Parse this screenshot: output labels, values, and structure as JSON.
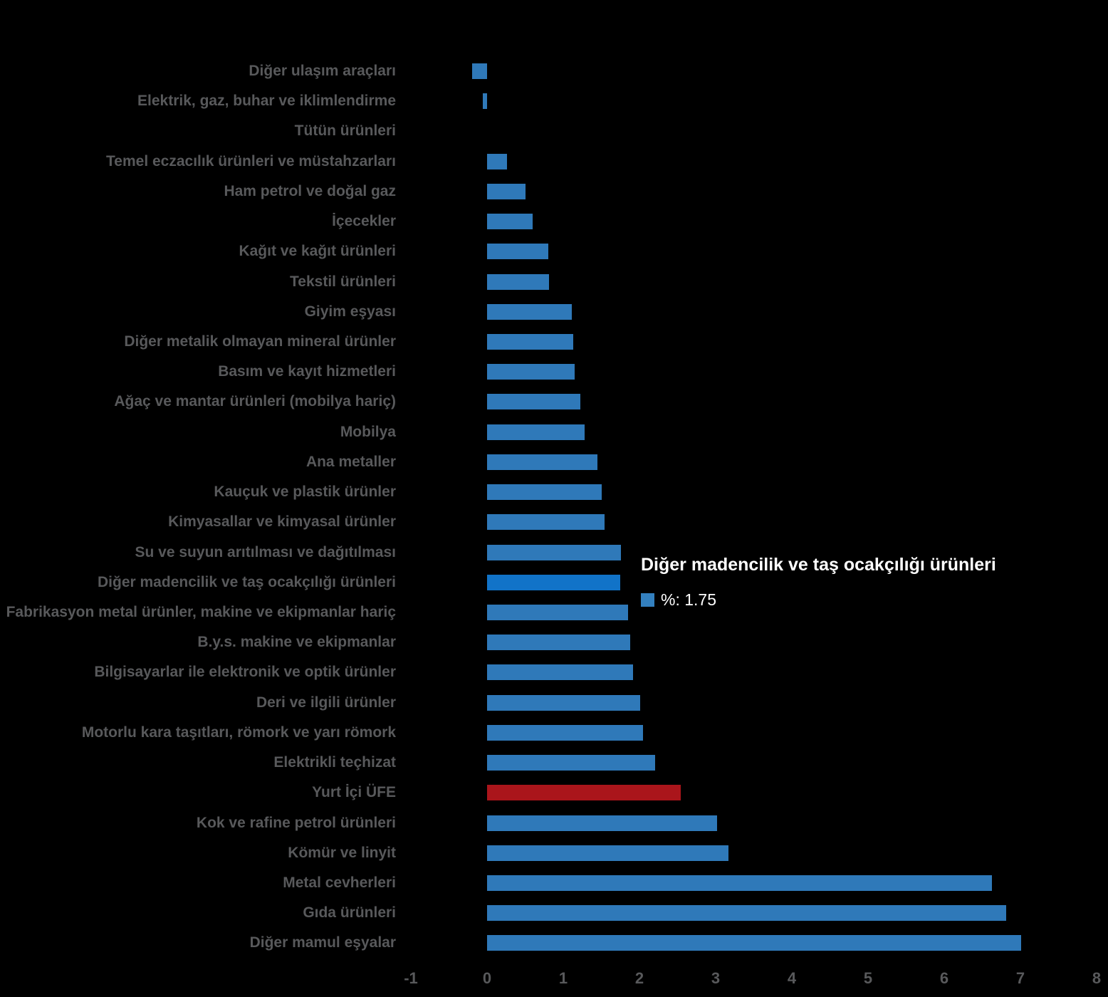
{
  "chart_data": {
    "type": "bar",
    "orientation": "horizontal",
    "title": "",
    "xlabel": "",
    "ylabel": "",
    "unit": "%",
    "xlim": [
      -1,
      8
    ],
    "x_ticks": [
      -1,
      0,
      1,
      2,
      3,
      4,
      5,
      6,
      7,
      8
    ],
    "grid": false,
    "legend": false,
    "categories": [
      "Diğer ulaşım araçları",
      "Elektrik, gaz, buhar ve iklimlendirme",
      "Tütün ürünleri",
      "Temel eczacılık ürünleri ve müstahzarları",
      "Ham petrol ve doğal gaz",
      "İçecekler",
      "Kağıt ve kağıt ürünleri",
      "Tekstil ürünleri",
      "Giyim eşyası",
      "Diğer metalik olmayan mineral ürünler",
      "Basım ve kayıt hizmetleri",
      "Ağaç ve mantar ürünleri (mobilya hariç)",
      "Mobilya",
      "Ana metaller",
      "Kauçuk ve plastik ürünler",
      "Kimyasallar ve kimyasal ürünler",
      "Su ve suyun arıtılması ve dağıtılması",
      "Diğer madencilik ve taş ocakçılığı ürünleri",
      "Fabrikasyon metal ürünler, makine ve ekipmanlar hariç",
      "B.y.s. makine ve ekipmanlar",
      "Bilgisayarlar ile elektronik ve optik ürünler",
      "Deri ve ilgili ürünler",
      "Motorlu kara taşıtları, römork ve yarı römork",
      "Elektrikli teçhizat",
      "Yurt İçi ÜFE",
      "Kok ve rafine petrol ürünleri",
      "Kömür ve linyit",
      "Metal cevherleri",
      "Gıda ürünleri",
      "Diğer mamul eşyalar"
    ],
    "values": [
      -0.2,
      -0.06,
      0,
      0.26,
      0.5,
      0.6,
      0.8,
      0.81,
      1.11,
      1.13,
      1.15,
      1.22,
      1.28,
      1.45,
      1.5,
      1.54,
      1.76,
      1.75,
      1.85,
      1.88,
      1.92,
      2.01,
      2.05,
      2.21,
      2.54,
      3.02,
      3.17,
      6.63,
      6.81,
      7.01
    ],
    "highlighted_index": 17,
    "emphasis_index": 24,
    "colors": {
      "bar": "#2F79B9",
      "highlighted_bar": "#1173C8",
      "emphasis_bar": "#AA151B",
      "label_text": "#58595B",
      "background": "#000000"
    }
  },
  "tooltip": {
    "title": "Diğer madencilik ve taş ocakçılığı ürünleri",
    "value_label": "%: 1.75",
    "swatch_color": "#3380BF"
  }
}
